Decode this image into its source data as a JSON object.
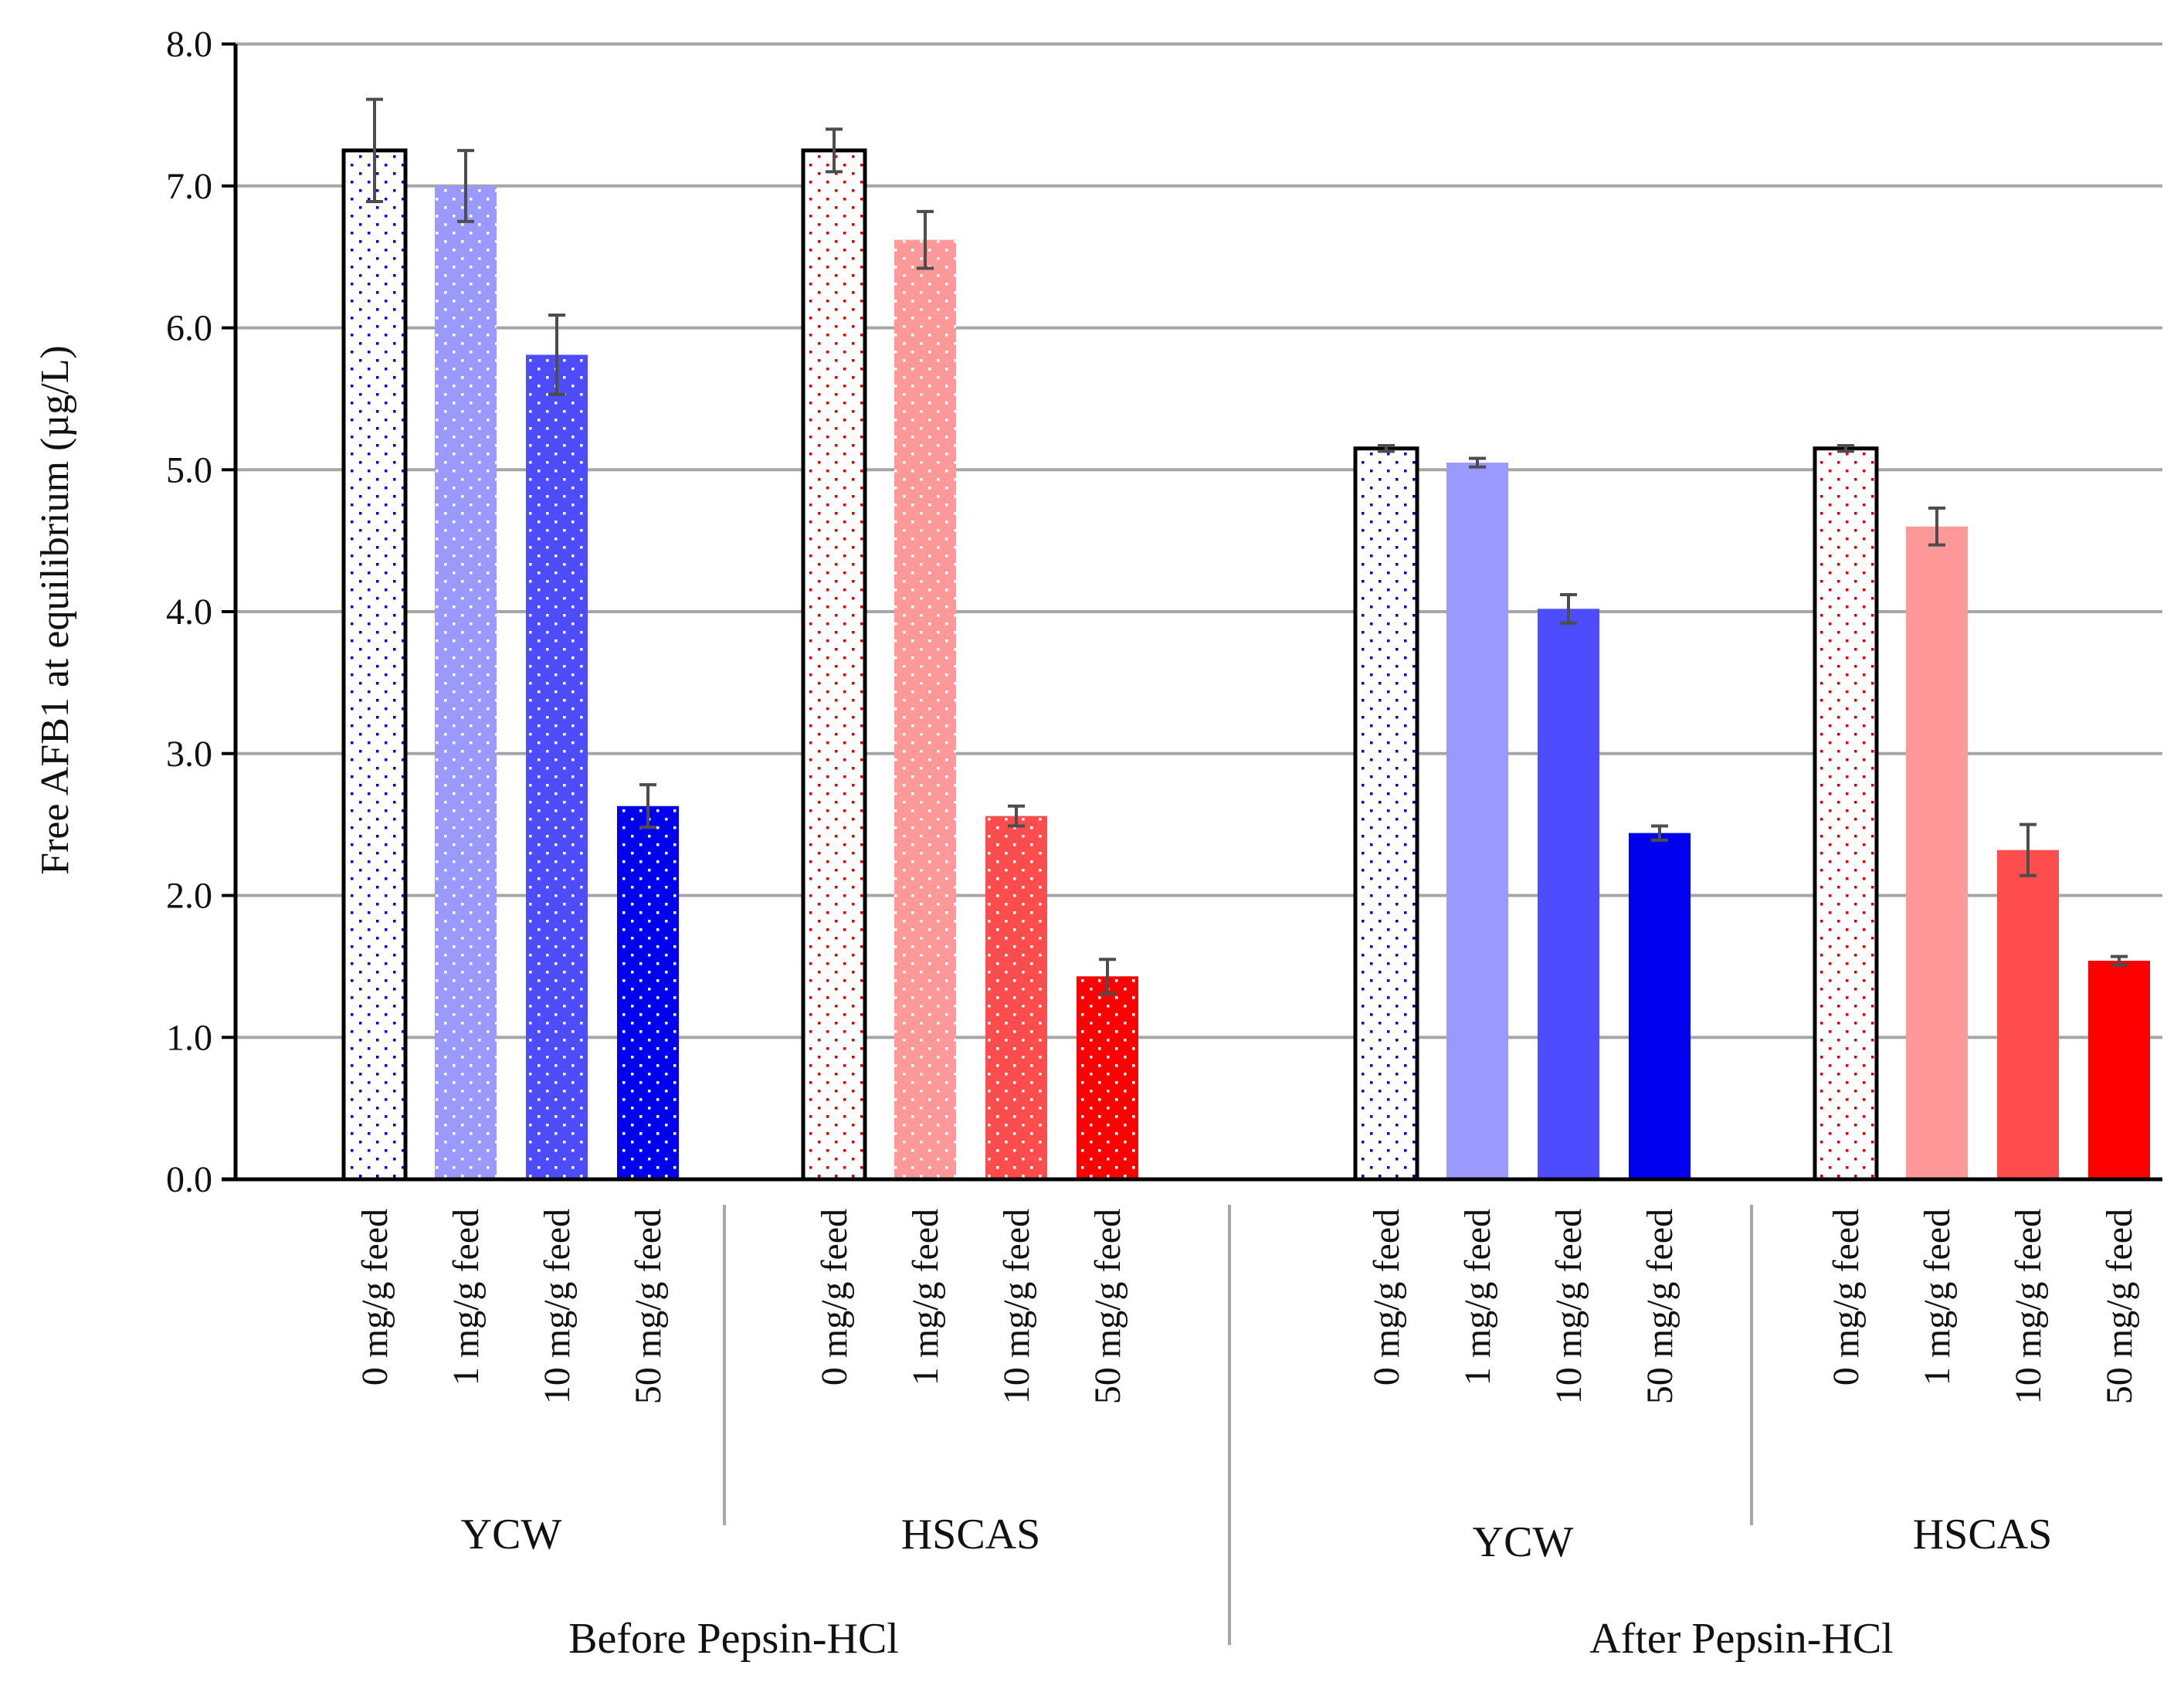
{
  "chart_data": {
    "type": "bar",
    "title": "",
    "ylabel": "Free AFB1 at equilibrium (µg/L)",
    "xlabel": "",
    "ylim": [
      0,
      8
    ],
    "y_ticks": [
      "0.0",
      "1.0",
      "2.0",
      "3.0",
      "4.0",
      "5.0",
      "6.0",
      "7.0",
      "8.0"
    ],
    "grid": true,
    "colors": {
      "ycw_0": "#ffffff",
      "ycw_1": "#9999ff",
      "ycw_10": "#4d4dff",
      "ycw_50": "#0000ee",
      "hscas_0": "#ffffff",
      "hscas_1": "#ff9999",
      "hscas_10": "#ff4d4d",
      "hscas_50": "#ff0000",
      "ycw_dots": "#0000cc",
      "hscas_dots": "#dd0000",
      "grid": "#a6a6a6",
      "error_bar": "#4d4d4d",
      "axis": "#000000"
    },
    "super_groups": [
      {
        "label": "Before Pepsin-HCl",
        "groups": [
          {
            "label": "YCW",
            "bars": [
              {
                "category": "0 mg/g feed",
                "value": 7.25,
                "error": 0.36,
                "fill": "ycw_0",
                "dots": "ycw_dots",
                "outlined": true,
                "dotted": true
              },
              {
                "category": "1 mg/g feed",
                "value": 7.0,
                "error": 0.25,
                "fill": "ycw_1",
                "dots": "ycw_dots",
                "outlined": false,
                "dotted": true
              },
              {
                "category": "10 mg/g feed",
                "value": 5.81,
                "error": 0.28,
                "fill": "ycw_10",
                "dots": "ycw_dots",
                "outlined": false,
                "dotted": true
              },
              {
                "category": "50 mg/g feed",
                "value": 2.63,
                "error": 0.15,
                "fill": "ycw_50",
                "dots": "ycw_dots",
                "outlined": false,
                "dotted": true
              }
            ]
          },
          {
            "label": "HSCAS",
            "bars": [
              {
                "category": "0 mg/g feed",
                "value": 7.25,
                "error": 0.15,
                "fill": "hscas_0",
                "dots": "hscas_dots",
                "outlined": true,
                "dotted": true
              },
              {
                "category": "1 mg/g feed",
                "value": 6.62,
                "error": 0.2,
                "fill": "hscas_1",
                "dots": "hscas_dots",
                "outlined": false,
                "dotted": true
              },
              {
                "category": "10 mg/g feed",
                "value": 2.56,
                "error": 0.07,
                "fill": "hscas_10",
                "dots": "hscas_dots",
                "outlined": false,
                "dotted": true
              },
              {
                "category": "50 mg/g feed",
                "value": 1.43,
                "error": 0.12,
                "fill": "hscas_50",
                "dots": "hscas_dots",
                "outlined": false,
                "dotted": true
              }
            ]
          }
        ]
      },
      {
        "label": "After Pepsin-HCl",
        "groups": [
          {
            "label": "YCW",
            "bars": [
              {
                "category": "0 mg/g feed",
                "value": 5.15,
                "error": 0.02,
                "fill": "ycw_0",
                "dots": "ycw_dots",
                "outlined": true,
                "dotted": true
              },
              {
                "category": "1 mg/g feed",
                "value": 5.05,
                "error": 0.03,
                "fill": "ycw_1",
                "dots": "ycw_dots",
                "outlined": false,
                "dotted": false
              },
              {
                "category": "10 mg/g feed",
                "value": 4.02,
                "error": 0.1,
                "fill": "ycw_10",
                "dots": "ycw_dots",
                "outlined": false,
                "dotted": false
              },
              {
                "category": "50 mg/g feed",
                "value": 2.44,
                "error": 0.05,
                "fill": "ycw_50",
                "dots": "ycw_dots",
                "outlined": false,
                "dotted": false
              }
            ]
          },
          {
            "label": "HSCAS",
            "bars": [
              {
                "category": "0 mg/g feed",
                "value": 5.15,
                "error": 0.02,
                "fill": "hscas_0",
                "dots": "hscas_dots",
                "outlined": true,
                "dotted": true
              },
              {
                "category": "1 mg/g feed",
                "value": 4.6,
                "error": 0.13,
                "fill": "hscas_1",
                "dots": "hscas_dots",
                "outlined": false,
                "dotted": false
              },
              {
                "category": "10 mg/g feed",
                "value": 2.32,
                "error": 0.18,
                "fill": "hscas_10",
                "dots": "hscas_dots",
                "outlined": false,
                "dotted": false
              },
              {
                "category": "50 mg/g feed",
                "value": 1.54,
                "error": 0.03,
                "fill": "hscas_50",
                "dots": "hscas_dots",
                "outlined": false,
                "dotted": false
              }
            ]
          }
        ]
      }
    ]
  }
}
